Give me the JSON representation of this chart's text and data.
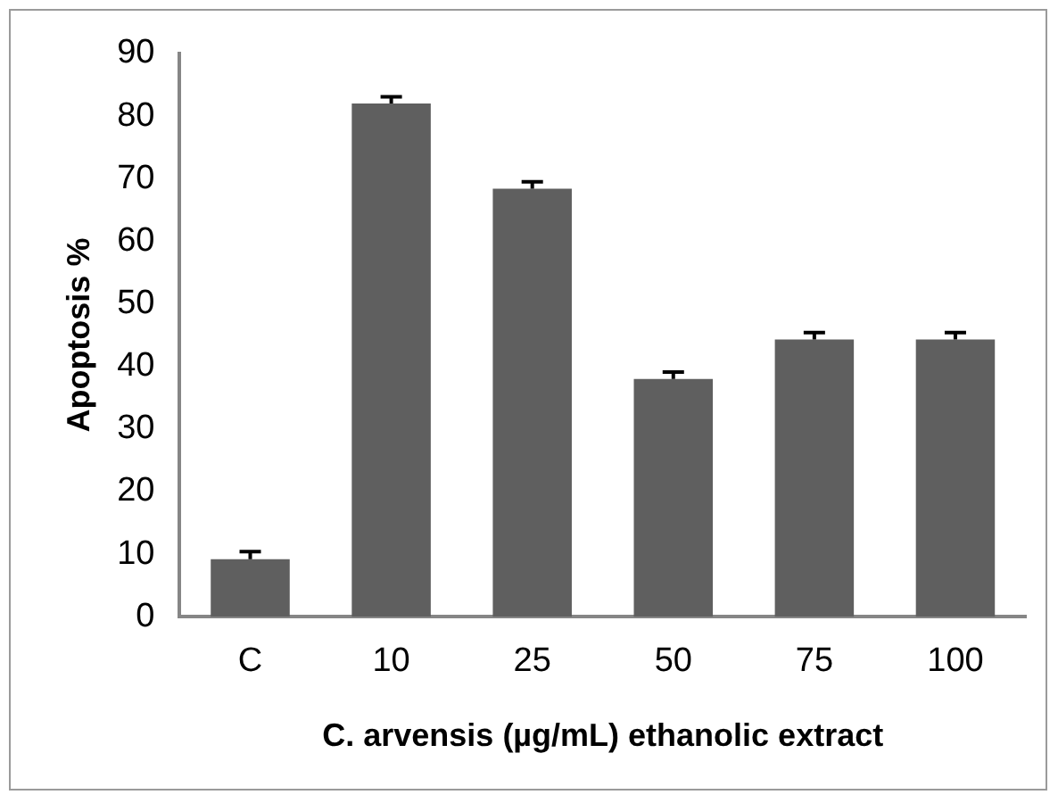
{
  "chart_data": {
    "type": "bar",
    "xlabel": "C. arvensis (µg/mL) ethanolic extract",
    "ylabel": "Apoptosis %",
    "categories": [
      "C",
      "10",
      "25",
      "50",
      "75",
      "100"
    ],
    "values": [
      9.2,
      82.0,
      68.4,
      38.0,
      44.3,
      44.3
    ],
    "errors": [
      [
        9.2,
        10.4
      ],
      [
        82.0,
        83.1
      ],
      [
        68.4,
        69.5
      ],
      [
        38.0,
        39.1
      ],
      [
        44.3,
        45.4
      ],
      [
        44.3,
        45.4
      ]
    ],
    "color": "#5f5f5f",
    "ylim": [
      0,
      90
    ],
    "yticks": [
      0,
      10,
      20,
      30,
      40,
      50,
      60,
      70,
      80,
      90
    ],
    "grid": false,
    "legend": false
  }
}
